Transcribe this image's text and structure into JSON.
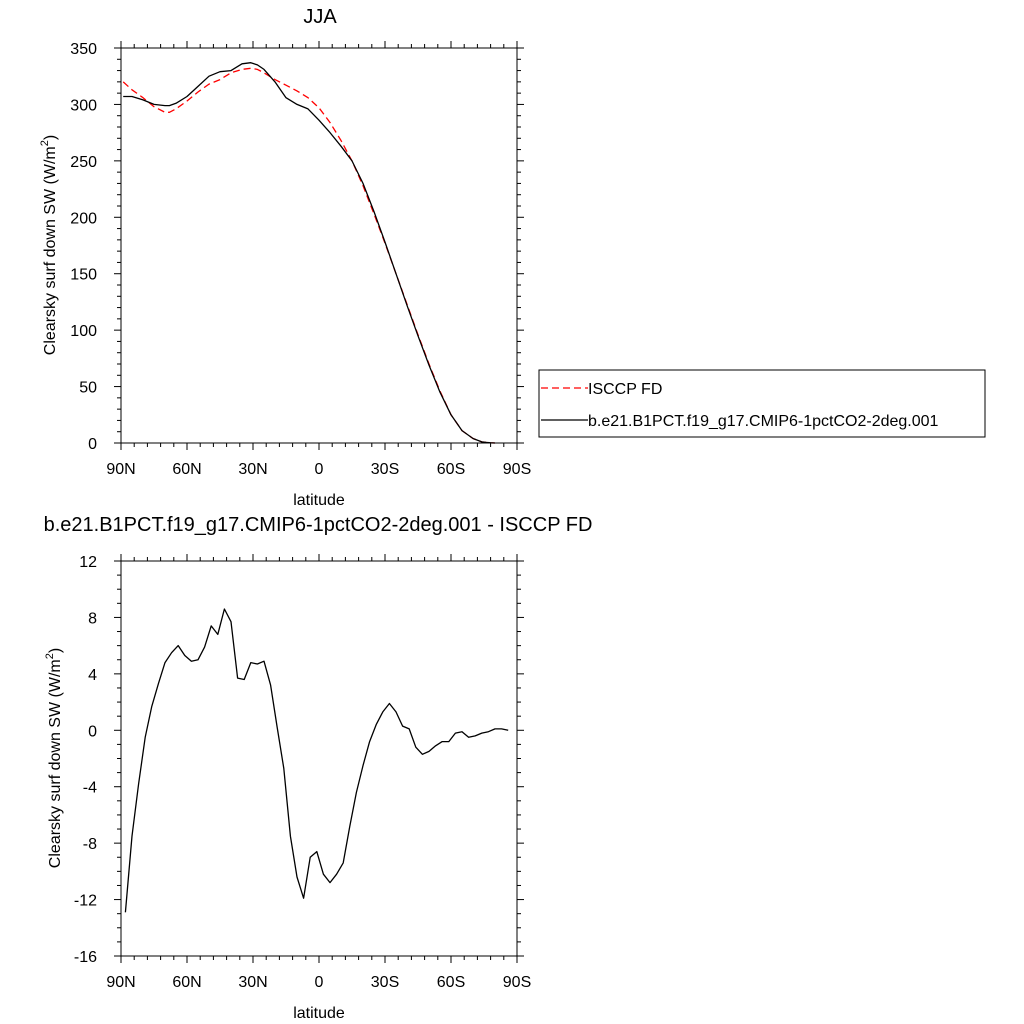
{
  "chart_data": [
    {
      "type": "line",
      "title": "JJA",
      "xlabel": "latitude",
      "ylabel": "Clearsky surf down SW (W/m",
      "ylabel_sup": "2",
      "ylabel_end": ")",
      "xlim": [
        90,
        -90
      ],
      "ylim": [
        0,
        350
      ],
      "x_ticks": [
        90,
        60,
        30,
        0,
        -30,
        -60,
        -90
      ],
      "x_tick_labels": [
        "90N",
        "60N",
        "30N",
        "0",
        "30S",
        "60S",
        "90S"
      ],
      "y_ticks": [
        0,
        50,
        100,
        150,
        200,
        250,
        300,
        350
      ],
      "y_tick_labels": [
        "0",
        "50",
        "100",
        "150",
        "200",
        "250",
        "300",
        "350"
      ],
      "legend_position": "right",
      "series": [
        {
          "name": "ISCCP FD",
          "color": "#ff0000",
          "dash": "dashed",
          "x": [
            89,
            85,
            80,
            75,
            70,
            68,
            65,
            60,
            55,
            50,
            45,
            40,
            35,
            31,
            28,
            25,
            20,
            15,
            10,
            5,
            0,
            -5,
            -10,
            -15,
            -20,
            -25,
            -30,
            -35,
            -40,
            -45,
            -50,
            -55,
            -60,
            -65,
            -70,
            -74,
            -76,
            -78,
            -80
          ],
          "y": [
            320,
            313,
            306,
            298,
            293,
            293,
            296,
            303,
            311,
            318,
            322,
            328,
            331,
            332,
            331,
            328,
            322,
            317,
            312,
            306,
            297,
            284,
            268,
            250,
            228,
            203,
            177,
            150,
            123,
            96,
            70,
            46,
            25,
            11,
            4,
            1,
            0.5,
            0.2,
            0
          ]
        },
        {
          "name": "b.e21.B1PCT.f19_g17.CMIP6-1pctCO2-2deg.001",
          "color": "#000000",
          "dash": "solid",
          "x": [
            89,
            85,
            80,
            75,
            70,
            68,
            65,
            60,
            55,
            50,
            45,
            40,
            35,
            31,
            28,
            25,
            20,
            15,
            10,
            5,
            0,
            -5,
            -10,
            -15,
            -20,
            -25,
            -30,
            -35,
            -40,
            -45,
            -50,
            -55,
            -60,
            -65,
            -70,
            -74,
            -76,
            -78,
            -80
          ],
          "y": [
            307,
            307,
            304,
            300,
            299,
            299,
            301,
            307,
            316,
            325,
            329,
            330,
            336,
            337,
            335,
            331,
            320,
            306,
            300,
            296,
            286,
            275,
            263,
            250,
            230,
            205,
            178,
            150,
            122,
            95,
            69,
            45,
            25,
            11,
            4,
            1,
            0.5,
            0.2,
            0
          ]
        }
      ]
    },
    {
      "type": "line",
      "title": "b.e21.B1PCT.f19_g17.CMIP6-1pctCO2-2deg.001 - ISCCP FD",
      "xlabel": "latitude",
      "ylabel": "Clearsky surf down SW (W/m",
      "ylabel_sup": "2",
      "ylabel_end": ")",
      "xlim": [
        90,
        -90
      ],
      "ylim": [
        -16,
        12
      ],
      "x_ticks": [
        90,
        60,
        30,
        0,
        -30,
        -60,
        -90
      ],
      "x_tick_labels": [
        "90N",
        "60N",
        "30N",
        "0",
        "30S",
        "60S",
        "90S"
      ],
      "y_ticks": [
        -16,
        -12,
        -8,
        -4,
        0,
        4,
        8,
        12
      ],
      "y_tick_labels": [
        "-16",
        "-12",
        "-8",
        "-4",
        "0",
        "4",
        "8",
        "12"
      ],
      "series": [
        {
          "color": "#000000",
          "dash": "solid",
          "x": [
            88,
            85,
            82,
            79,
            76,
            73,
            70,
            67,
            64,
            61,
            58,
            55,
            52,
            49,
            46,
            43,
            40,
            37,
            34,
            31,
            28,
            25,
            22,
            19,
            16,
            13,
            10,
            7,
            4,
            1,
            -2,
            -5,
            -8,
            -11,
            -14,
            -17,
            -20,
            -23,
            -26,
            -29,
            -32,
            -35,
            -38,
            -41,
            -44,
            -47,
            -50,
            -53,
            -56,
            -59,
            -62,
            -65,
            -68,
            -71,
            -74,
            -77,
            -80,
            -83,
            -86
          ],
          "y": [
            -12.9,
            -7.5,
            -3.8,
            -0.5,
            1.7,
            3.3,
            4.8,
            5.5,
            6.0,
            5.3,
            4.9,
            5.0,
            5.9,
            7.4,
            6.8,
            8.6,
            7.7,
            3.7,
            3.6,
            4.8,
            4.7,
            4.9,
            3.2,
            0.2,
            -2.7,
            -7.5,
            -10.4,
            -11.9,
            -9.0,
            -8.6,
            -10.2,
            -10.8,
            -10.2,
            -9.4,
            -6.8,
            -4.4,
            -2.5,
            -0.8,
            0.4,
            1.3,
            1.9,
            1.3,
            0.3,
            0.1,
            -1.2,
            -1.7,
            -1.5,
            -1.1,
            -0.8,
            -0.8,
            -0.2,
            -0.1,
            -0.5,
            -0.4,
            -0.2,
            -0.1,
            0.1,
            0.1,
            0.0
          ]
        }
      ]
    }
  ]
}
